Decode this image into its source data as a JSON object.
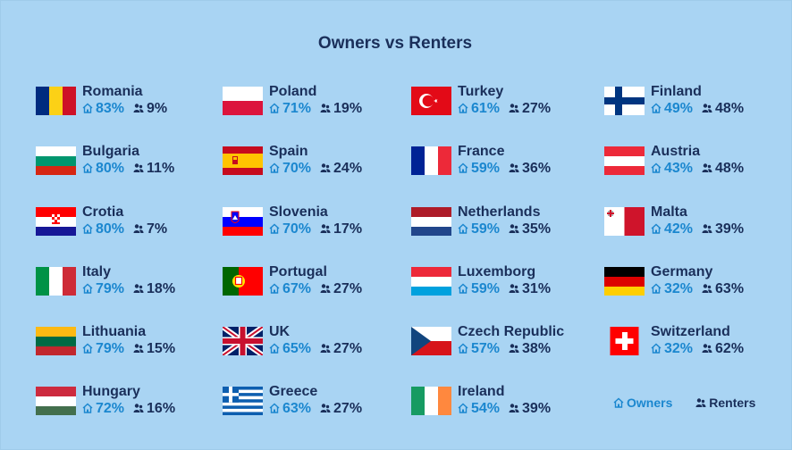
{
  "title": "Owners vs Renters",
  "legend": {
    "owners": "Owners",
    "renters": "Renters"
  },
  "colors": {
    "owners": "#1b87cf",
    "renters": "#1a2f5a",
    "background": "#a9d4f3"
  },
  "icons": {
    "owners": "house-icon",
    "renters": "people-icon"
  },
  "countries": [
    {
      "name": "Romania",
      "owners": "83%",
      "renters": "9%",
      "flag": "romania"
    },
    {
      "name": "Bulgaria",
      "owners": "80%",
      "renters": "11%",
      "flag": "bulgaria"
    },
    {
      "name": "Crotia",
      "owners": "80%",
      "renters": "7%",
      "flag": "croatia"
    },
    {
      "name": "Italy",
      "owners": "79%",
      "renters": "18%",
      "flag": "italy"
    },
    {
      "name": "Lithuania",
      "owners": "79%",
      "renters": "15%",
      "flag": "lithuania"
    },
    {
      "name": "Hungary",
      "owners": "72%",
      "renters": "16%",
      "flag": "hungary"
    },
    {
      "name": "Poland",
      "owners": "71%",
      "renters": "19%",
      "flag": "poland"
    },
    {
      "name": "Spain",
      "owners": "70%",
      "renters": "24%",
      "flag": "spain"
    },
    {
      "name": "Slovenia",
      "owners": "70%",
      "renters": "17%",
      "flag": "slovenia"
    },
    {
      "name": "Portugal",
      "owners": "67%",
      "renters": "27%",
      "flag": "portugal"
    },
    {
      "name": "UK",
      "owners": "65%",
      "renters": "27%",
      "flag": "uk"
    },
    {
      "name": "Greece",
      "owners": "63%",
      "renters": "27%",
      "flag": "greece"
    },
    {
      "name": "Turkey",
      "owners": "61%",
      "renters": "27%",
      "flag": "turkey"
    },
    {
      "name": "France",
      "owners": "59%",
      "renters": "36%",
      "flag": "france"
    },
    {
      "name": "Netherlands",
      "owners": "59%",
      "renters": "35%",
      "flag": "netherlands"
    },
    {
      "name": "Luxemborg",
      "owners": "59%",
      "renters": "31%",
      "flag": "luxembourg"
    },
    {
      "name": "Czech Republic",
      "owners": "57%",
      "renters": "38%",
      "flag": "czech"
    },
    {
      "name": "Ireland",
      "owners": "54%",
      "renters": "39%",
      "flag": "ireland"
    },
    {
      "name": "Finland",
      "owners": "49%",
      "renters": "48%",
      "flag": "finland"
    },
    {
      "name": "Austria",
      "owners": "43%",
      "renters": "48%",
      "flag": "austria"
    },
    {
      "name": "Malta",
      "owners": "42%",
      "renters": "39%",
      "flag": "malta"
    },
    {
      "name": "Germany",
      "owners": "32%",
      "renters": "63%",
      "flag": "germany"
    },
    {
      "name": "Switzerland",
      "owners": "32%",
      "renters": "62%",
      "flag": "switzerland"
    }
  ]
}
